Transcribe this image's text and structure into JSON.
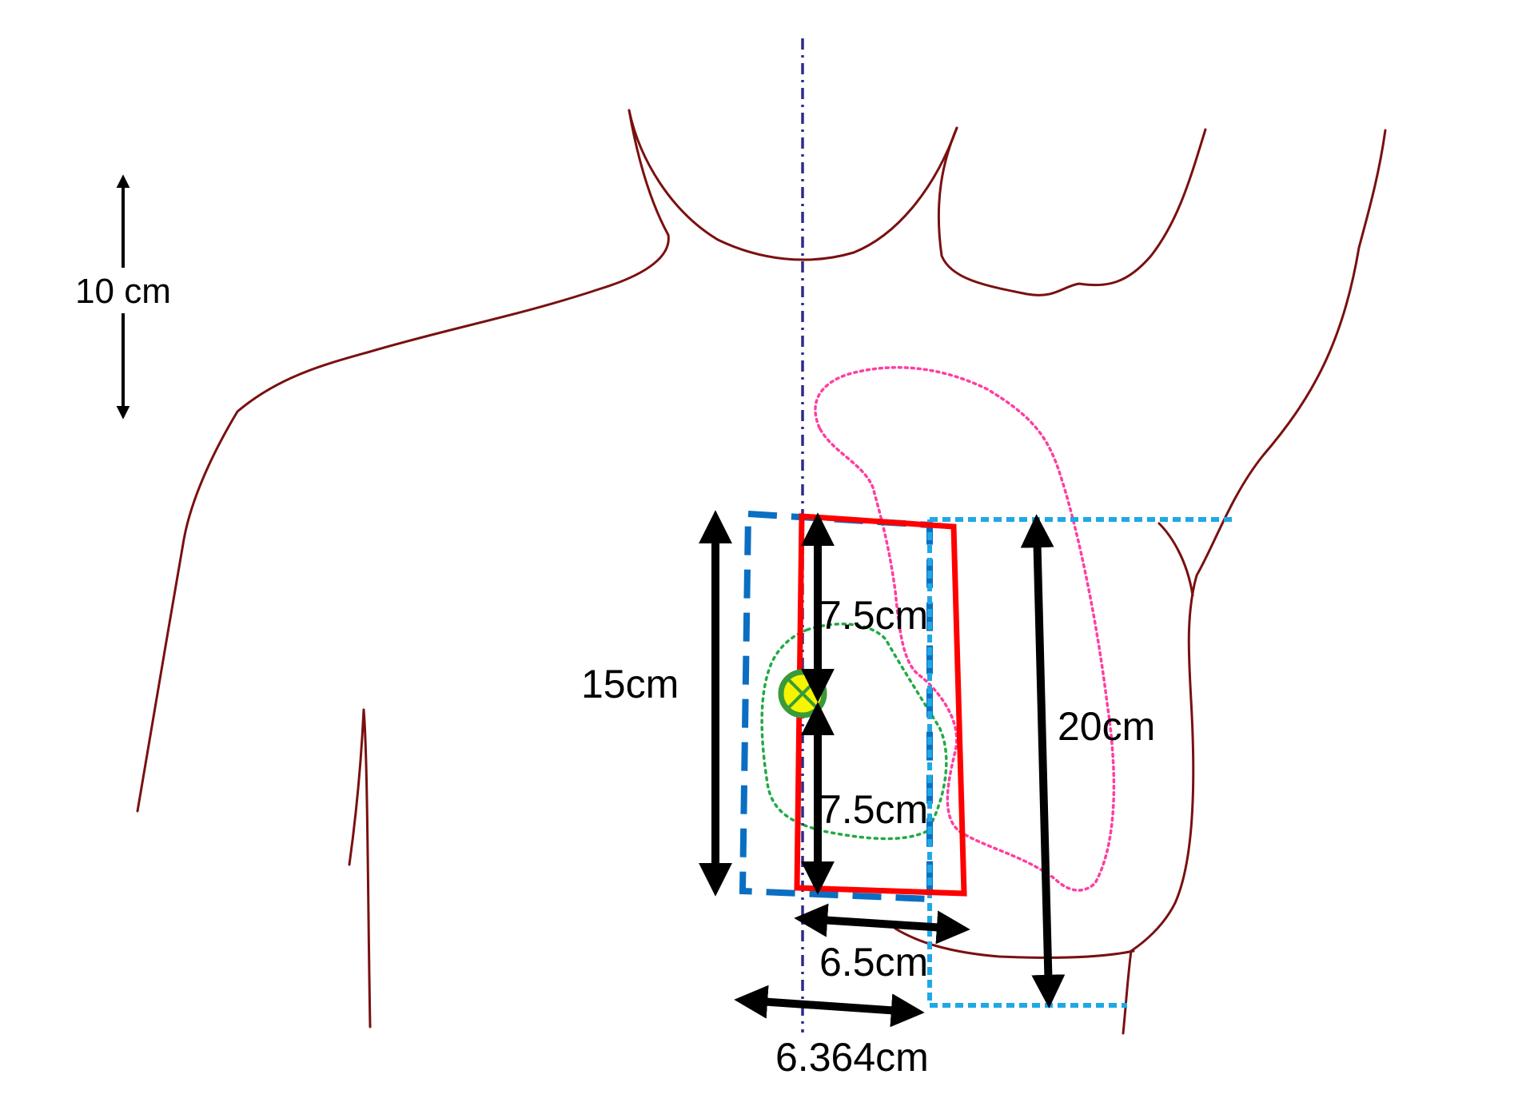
{
  "scale_bar": {
    "label": "10 cm"
  },
  "dimensions": {
    "left_height": "15cm",
    "upper_half": "7.5cm",
    "lower_half": "7.5cm",
    "right_height": "20cm",
    "red_width": "6.5cm",
    "blue_width": "6.364cm"
  },
  "colors": {
    "body_outline": "#7a1010",
    "midline": "#2e2a8a",
    "red_field": "#ff0000",
    "dark_blue_field": "#0a6fc2",
    "light_blue_field": "#1fa8e6",
    "pink_contour": "#ff3fa0",
    "green_contour": "#22aa44",
    "marker_fill": "#f5f500",
    "marker_ring": "#3a9a3a",
    "arrows": "#000000"
  },
  "icons": {
    "marker": "crossed-circle-icon"
  }
}
